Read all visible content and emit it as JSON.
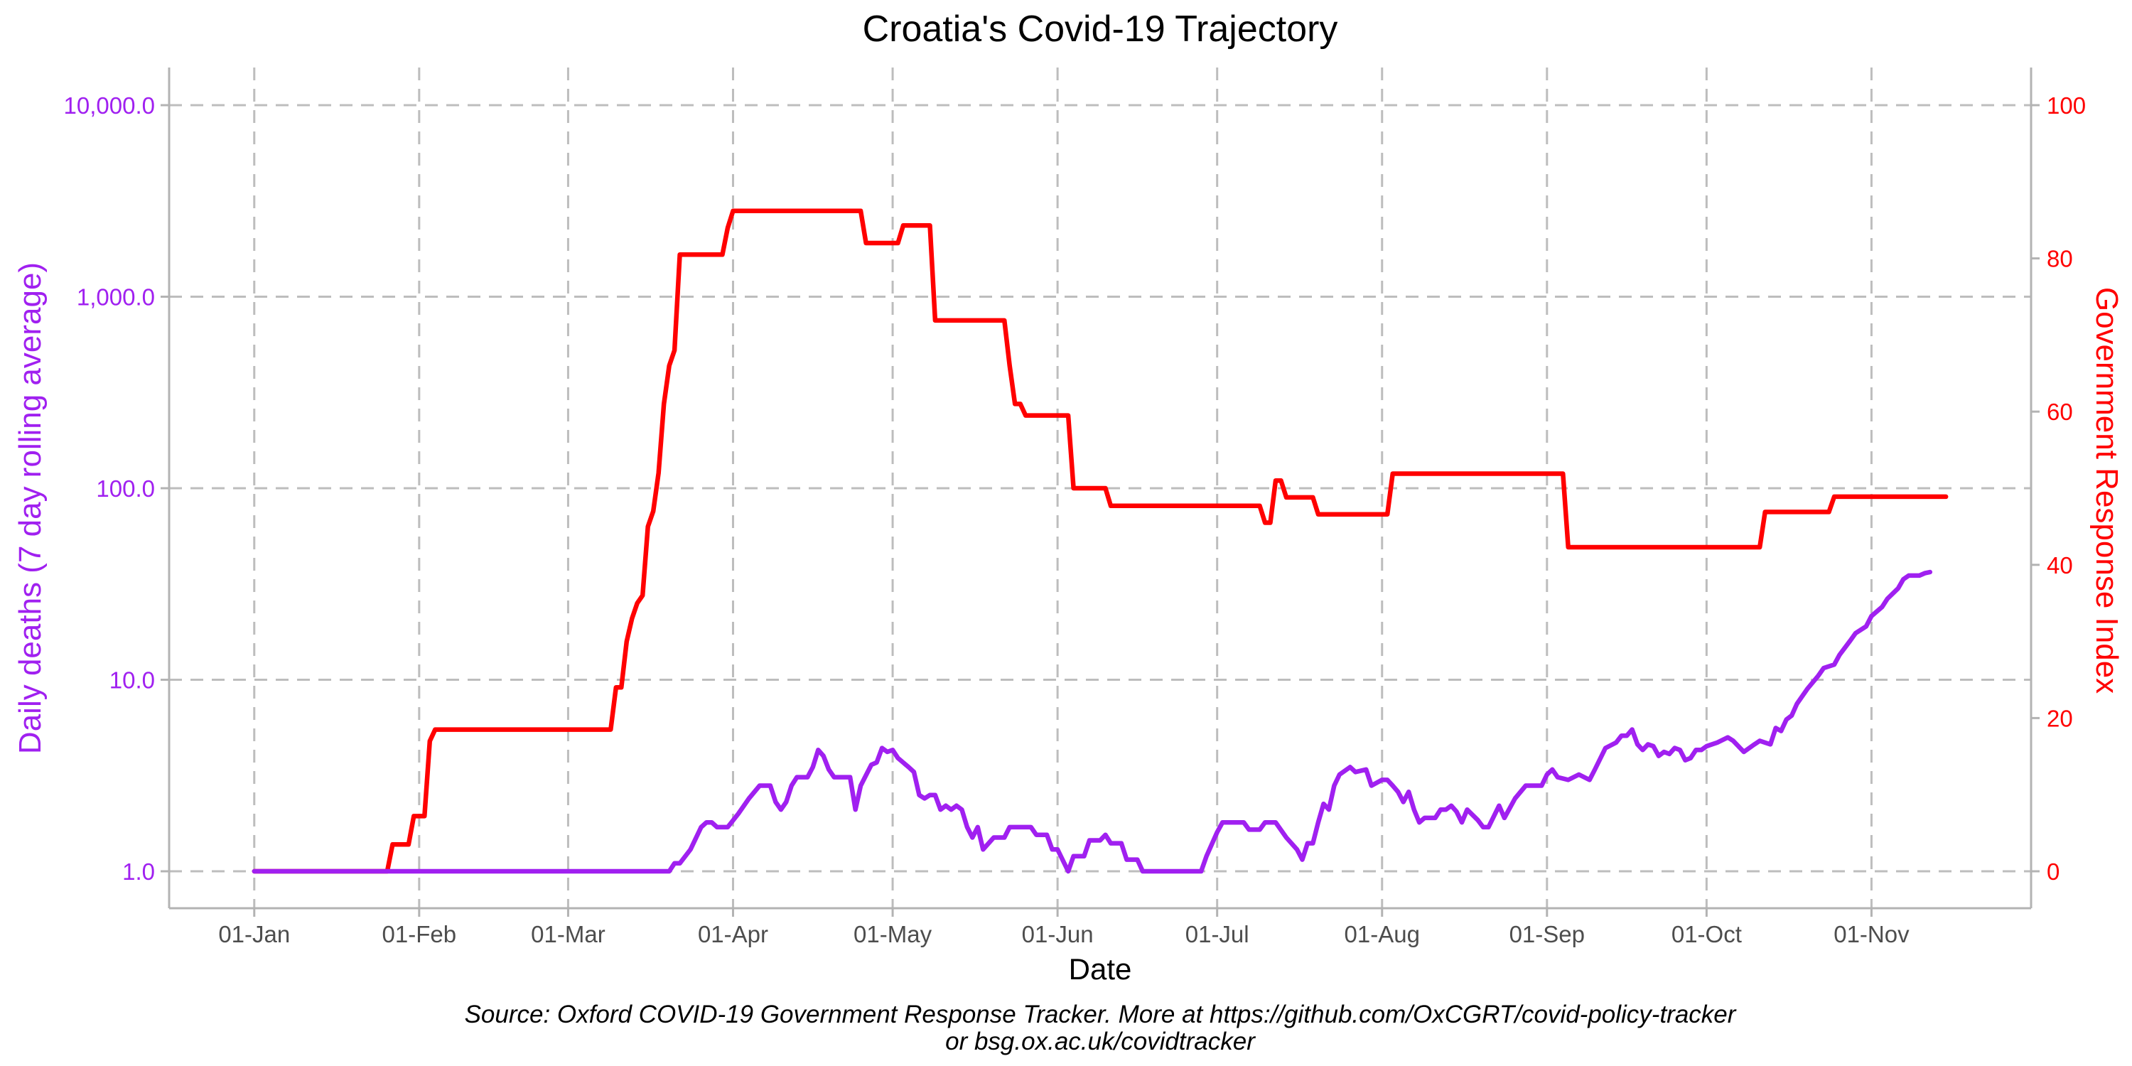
{
  "colors": {
    "deaths": "#a020f0",
    "response": "#ff0000",
    "grid": "#bdbdbd",
    "frame": "#b3b3b3",
    "tick_text": "#4d4d4d"
  },
  "chart_data": {
    "type": "line",
    "title": "Croatia's Covid-19 Trajectory",
    "xlabel": "Date",
    "ylabel_left": "Daily deaths (7 day rolling average)",
    "ylabel_right": "Government Response Index",
    "x_type": "date",
    "xlim": [
      "2020-12-16",
      "2021-12-01"
    ],
    "x_ticks": [
      {
        "label": "01-Jan",
        "date": "2021-01-01"
      },
      {
        "label": "01-Feb",
        "date": "2021-02-01"
      },
      {
        "label": "01-Mar",
        "date": "2021-03-01"
      },
      {
        "label": "01-Apr",
        "date": "2021-04-01"
      },
      {
        "label": "01-May",
        "date": "2021-05-01"
      },
      {
        "label": "01-Jun",
        "date": "2021-06-01"
      },
      {
        "label": "01-Jul",
        "date": "2021-07-01"
      },
      {
        "label": "01-Aug",
        "date": "2021-08-01"
      },
      {
        "label": "01-Sep",
        "date": "2021-09-01"
      },
      {
        "label": "01-Oct",
        "date": "2021-10-01"
      },
      {
        "label": "01-Nov",
        "date": "2021-11-01"
      }
    ],
    "y_left": {
      "scale": "log10",
      "ylim": [
        1,
        10000
      ],
      "ticks": [
        {
          "value": 1,
          "label": "1.0"
        },
        {
          "value": 10,
          "label": "10.0"
        },
        {
          "value": 100,
          "label": "100.0"
        },
        {
          "value": 1000,
          "label": "1,000.0"
        },
        {
          "value": 10000,
          "label": "10,000.0"
        }
      ]
    },
    "y_right": {
      "scale": "linear",
      "ylim": [
        0,
        100
      ],
      "ticks": [
        {
          "value": 0,
          "label": "0"
        },
        {
          "value": 20,
          "label": "20"
        },
        {
          "value": 40,
          "label": "40"
        },
        {
          "value": 60,
          "label": "60"
        },
        {
          "value": 80,
          "label": "80"
        },
        {
          "value": 100,
          "label": "100"
        }
      ]
    },
    "grid": true,
    "series": [
      {
        "axis": "right",
        "color": "#ff0000",
        "points": [
          [
            "2021-01-01",
            0
          ],
          [
            "2021-01-26",
            0
          ],
          [
            "2021-01-27",
            3.5
          ],
          [
            "2021-01-30",
            3.5
          ],
          [
            "2021-01-31",
            7.2
          ],
          [
            "2021-02-02",
            7.2
          ],
          [
            "2021-02-03",
            17
          ],
          [
            "2021-02-04",
            18.5
          ],
          [
            "2021-03-09",
            18.5
          ],
          [
            "2021-03-10",
            24
          ],
          [
            "2021-03-11",
            24
          ],
          [
            "2021-03-12",
            30
          ],
          [
            "2021-03-13",
            33
          ],
          [
            "2021-03-14",
            35
          ],
          [
            "2021-03-15",
            36
          ],
          [
            "2021-03-16",
            45
          ],
          [
            "2021-03-17",
            47
          ],
          [
            "2021-03-18",
            52
          ],
          [
            "2021-03-19",
            61
          ],
          [
            "2021-03-20",
            66
          ],
          [
            "2021-03-21",
            68
          ],
          [
            "2021-03-22",
            80.5
          ],
          [
            "2021-03-30",
            80.5
          ],
          [
            "2021-03-31",
            84
          ],
          [
            "2021-04-01",
            86.2
          ],
          [
            "2021-04-25",
            86.2
          ],
          [
            "2021-04-26",
            82
          ],
          [
            "2021-05-02",
            82
          ],
          [
            "2021-05-03",
            84.3
          ],
          [
            "2021-05-08",
            84.3
          ],
          [
            "2021-05-09",
            71.9
          ],
          [
            "2021-05-22",
            71.9
          ],
          [
            "2021-05-23",
            66
          ],
          [
            "2021-05-24",
            61
          ],
          [
            "2021-05-25",
            61
          ],
          [
            "2021-05-26",
            59.5
          ],
          [
            "2021-06-03",
            59.5
          ],
          [
            "2021-06-04",
            50
          ],
          [
            "2021-06-10",
            50
          ],
          [
            "2021-06-11",
            47.7
          ],
          [
            "2021-07-09",
            47.7
          ],
          [
            "2021-07-10",
            45.5
          ],
          [
            "2021-07-11",
            45.5
          ],
          [
            "2021-07-12",
            51
          ],
          [
            "2021-07-13",
            51
          ],
          [
            "2021-07-14",
            48.8
          ],
          [
            "2021-07-19",
            48.8
          ],
          [
            "2021-07-20",
            46.6
          ],
          [
            "2021-08-02",
            46.6
          ],
          [
            "2021-08-03",
            51.9
          ],
          [
            "2021-09-04",
            51.9
          ],
          [
            "2021-09-05",
            42.3
          ],
          [
            "2021-10-11",
            42.3
          ],
          [
            "2021-10-12",
            46.9
          ],
          [
            "2021-10-24",
            46.9
          ],
          [
            "2021-10-25",
            48.9
          ],
          [
            "2021-11-15",
            48.9
          ]
        ]
      },
      {
        "axis": "left",
        "color": "#a020f0",
        "points": [
          [
            "2021-01-01",
            1.0
          ],
          [
            "2021-03-20",
            1.0
          ],
          [
            "2021-03-21",
            1.1
          ],
          [
            "2021-03-22",
            1.1
          ],
          [
            "2021-03-24",
            1.3
          ],
          [
            "2021-03-26",
            1.7
          ],
          [
            "2021-03-27",
            1.8
          ],
          [
            "2021-03-28",
            1.8
          ],
          [
            "2021-03-29",
            1.7
          ],
          [
            "2021-03-31",
            1.7
          ],
          [
            "2021-04-02",
            2.0
          ],
          [
            "2021-04-04",
            2.4
          ],
          [
            "2021-04-06",
            2.8
          ],
          [
            "2021-04-08",
            2.8
          ],
          [
            "2021-04-09",
            2.3
          ],
          [
            "2021-04-10",
            2.1
          ],
          [
            "2021-04-11",
            2.3
          ],
          [
            "2021-04-12",
            2.8
          ],
          [
            "2021-04-13",
            3.1
          ],
          [
            "2021-04-15",
            3.1
          ],
          [
            "2021-04-16",
            3.5
          ],
          [
            "2021-04-17",
            4.3
          ],
          [
            "2021-04-18",
            4.0
          ],
          [
            "2021-04-19",
            3.4
          ],
          [
            "2021-04-20",
            3.1
          ],
          [
            "2021-04-21",
            3.1
          ],
          [
            "2021-04-23",
            3.1
          ],
          [
            "2021-04-24",
            2.1
          ],
          [
            "2021-04-25",
            2.8
          ],
          [
            "2021-04-27",
            3.6
          ],
          [
            "2021-04-28",
            3.7
          ],
          [
            "2021-04-29",
            4.4
          ],
          [
            "2021-04-30",
            4.2
          ],
          [
            "2021-05-01",
            4.3
          ],
          [
            "2021-05-02",
            3.9
          ],
          [
            "2021-05-04",
            3.5
          ],
          [
            "2021-05-05",
            3.3
          ],
          [
            "2021-05-06",
            2.5
          ],
          [
            "2021-05-07",
            2.4
          ],
          [
            "2021-05-08",
            2.5
          ],
          [
            "2021-05-09",
            2.5
          ],
          [
            "2021-05-10",
            2.1
          ],
          [
            "2021-05-11",
            2.2
          ],
          [
            "2021-05-12",
            2.1
          ],
          [
            "2021-05-13",
            2.2
          ],
          [
            "2021-05-14",
            2.1
          ],
          [
            "2021-05-15",
            1.7
          ],
          [
            "2021-05-16",
            1.5
          ],
          [
            "2021-05-17",
            1.7
          ],
          [
            "2021-05-18",
            1.3
          ],
          [
            "2021-05-20",
            1.5
          ],
          [
            "2021-05-22",
            1.5
          ],
          [
            "2021-05-23",
            1.7
          ],
          [
            "2021-05-27",
            1.7
          ],
          [
            "2021-05-28",
            1.55
          ],
          [
            "2021-05-30",
            1.55
          ],
          [
            "2021-05-31",
            1.3
          ],
          [
            "2021-06-01",
            1.3
          ],
          [
            "2021-06-03",
            1.0
          ],
          [
            "2021-06-04",
            1.2
          ],
          [
            "2021-06-06",
            1.2
          ],
          [
            "2021-06-07",
            1.45
          ],
          [
            "2021-06-09",
            1.45
          ],
          [
            "2021-06-10",
            1.55
          ],
          [
            "2021-06-11",
            1.4
          ],
          [
            "2021-06-13",
            1.4
          ],
          [
            "2021-06-14",
            1.15
          ],
          [
            "2021-06-16",
            1.15
          ],
          [
            "2021-06-17",
            1.0
          ],
          [
            "2021-06-28",
            1.0
          ],
          [
            "2021-06-29",
            1.2
          ],
          [
            "2021-07-01",
            1.6
          ],
          [
            "2021-07-02",
            1.8
          ],
          [
            "2021-07-06",
            1.8
          ],
          [
            "2021-07-07",
            1.65
          ],
          [
            "2021-07-09",
            1.65
          ],
          [
            "2021-07-10",
            1.8
          ],
          [
            "2021-07-12",
            1.8
          ],
          [
            "2021-07-14",
            1.5
          ],
          [
            "2021-07-16",
            1.3
          ],
          [
            "2021-07-17",
            1.15
          ],
          [
            "2021-07-18",
            1.4
          ],
          [
            "2021-07-19",
            1.4
          ],
          [
            "2021-07-20",
            1.8
          ],
          [
            "2021-07-21",
            2.25
          ],
          [
            "2021-07-22",
            2.1
          ],
          [
            "2021-07-23",
            2.8
          ],
          [
            "2021-07-24",
            3.2
          ],
          [
            "2021-07-26",
            3.5
          ],
          [
            "2021-07-27",
            3.3
          ],
          [
            "2021-07-29",
            3.4
          ],
          [
            "2021-07-30",
            2.8
          ],
          [
            "2021-08-01",
            3.0
          ],
          [
            "2021-08-02",
            3.0
          ],
          [
            "2021-08-03",
            2.8
          ],
          [
            "2021-08-04",
            2.6
          ],
          [
            "2021-08-05",
            2.3
          ],
          [
            "2021-08-06",
            2.6
          ],
          [
            "2021-08-07",
            2.1
          ],
          [
            "2021-08-08",
            1.8
          ],
          [
            "2021-08-09",
            1.9
          ],
          [
            "2021-08-11",
            1.9
          ],
          [
            "2021-08-12",
            2.1
          ],
          [
            "2021-08-13",
            2.1
          ],
          [
            "2021-08-14",
            2.2
          ],
          [
            "2021-08-15",
            2.05
          ],
          [
            "2021-08-16",
            1.8
          ],
          [
            "2021-08-17",
            2.1
          ],
          [
            "2021-08-19",
            1.85
          ],
          [
            "2021-08-20",
            1.7
          ],
          [
            "2021-08-21",
            1.7
          ],
          [
            "2021-08-23",
            2.2
          ],
          [
            "2021-08-24",
            1.9
          ],
          [
            "2021-08-26",
            2.4
          ],
          [
            "2021-08-28",
            2.8
          ],
          [
            "2021-08-31",
            2.8
          ],
          [
            "2021-09-01",
            3.2
          ],
          [
            "2021-09-02",
            3.4
          ],
          [
            "2021-09-03",
            3.1
          ],
          [
            "2021-09-05",
            3.0
          ],
          [
            "2021-09-07",
            3.2
          ],
          [
            "2021-09-09",
            3.0
          ],
          [
            "2021-09-10",
            3.4
          ],
          [
            "2021-09-12",
            4.4
          ],
          [
            "2021-09-14",
            4.7
          ],
          [
            "2021-09-15",
            5.1
          ],
          [
            "2021-09-16",
            5.1
          ],
          [
            "2021-09-17",
            5.5
          ],
          [
            "2021-09-18",
            4.6
          ],
          [
            "2021-09-19",
            4.3
          ],
          [
            "2021-09-20",
            4.6
          ],
          [
            "2021-09-21",
            4.5
          ],
          [
            "2021-09-22",
            4.0
          ],
          [
            "2021-09-23",
            4.2
          ],
          [
            "2021-09-24",
            4.1
          ],
          [
            "2021-09-25",
            4.4
          ],
          [
            "2021-09-26",
            4.3
          ],
          [
            "2021-09-27",
            3.8
          ],
          [
            "2021-09-28",
            3.9
          ],
          [
            "2021-09-29",
            4.3
          ],
          [
            "2021-09-30",
            4.3
          ],
          [
            "2021-10-01",
            4.5
          ],
          [
            "2021-10-03",
            4.7
          ],
          [
            "2021-10-05",
            5.0
          ],
          [
            "2021-10-06",
            4.8
          ],
          [
            "2021-10-08",
            4.2
          ],
          [
            "2021-10-10",
            4.6
          ],
          [
            "2021-10-11",
            4.8
          ],
          [
            "2021-10-13",
            4.6
          ],
          [
            "2021-10-14",
            5.6
          ],
          [
            "2021-10-15",
            5.4
          ],
          [
            "2021-10-16",
            6.2
          ],
          [
            "2021-10-17",
            6.5
          ],
          [
            "2021-10-18",
            7.5
          ],
          [
            "2021-10-20",
            9.0
          ],
          [
            "2021-10-22",
            10.5
          ],
          [
            "2021-10-23",
            11.5
          ],
          [
            "2021-10-25",
            12.0
          ],
          [
            "2021-10-26",
            13.5
          ],
          [
            "2021-10-28",
            16.0
          ],
          [
            "2021-10-29",
            17.5
          ],
          [
            "2021-10-31",
            19.0
          ],
          [
            "2021-11-01",
            21.5
          ],
          [
            "2021-11-03",
            24.0
          ],
          [
            "2021-11-04",
            26.5
          ],
          [
            "2021-11-06",
            30.0
          ],
          [
            "2021-11-07",
            33.5
          ],
          [
            "2021-11-08",
            35.0
          ],
          [
            "2021-11-10",
            35.0
          ],
          [
            "2021-11-11",
            36.0
          ],
          [
            "2021-11-12",
            36.5
          ]
        ]
      }
    ],
    "caption": [
      "Source: Oxford COVID-19 Government Response Tracker. More at https://github.com/OxCGRT/covid-policy-tracker",
      "or bsg.ox.ac.uk/covidtracker"
    ]
  }
}
